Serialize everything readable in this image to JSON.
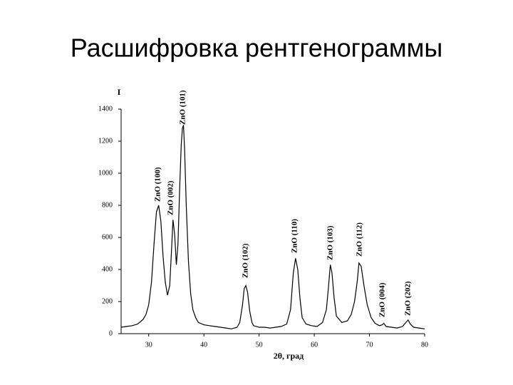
{
  "chart_data": {
    "type": "line",
    "title": "Расшифровка рентгенограммы",
    "y_label": "I",
    "x_label": "2θ, град",
    "xlim": [
      25,
      80
    ],
    "xticks": [
      30,
      40,
      50,
      60,
      70,
      80
    ],
    "ylim": [
      0,
      1400
    ],
    "yticks": [
      0,
      200,
      400,
      600,
      800,
      1000,
      1200,
      1400
    ],
    "color": "#000000",
    "annotations": [
      "ZnO (101)",
      "ZnO (100)",
      "ZnO (002)",
      "ZnO (102)",
      "ZnO (110)",
      "ZnO (103)",
      "ZnO (112)",
      "ZnO (004)",
      "ZnO (202)"
    ],
    "x": [
      25,
      26,
      27,
      28,
      29,
      29.5,
      30,
      30.5,
      31,
      31.4,
      31.8,
      32.2,
      32.6,
      33,
      33.4,
      33.8,
      34.1,
      34.4,
      34.7,
      35,
      35.3,
      35.6,
      35.9,
      36.1,
      36.3,
      36.5,
      36.8,
      37.2,
      37.6,
      38,
      38.5,
      39,
      40,
      41,
      42,
      43,
      44,
      45,
      46,
      46.5,
      47,
      47.3,
      47.6,
      47.9,
      48.3,
      48.7,
      49,
      50,
      51,
      52,
      53,
      54,
      55,
      55.7,
      56.2,
      56.6,
      57,
      57.4,
      57.8,
      58.5,
      59.5,
      60.5,
      61.5,
      62.2,
      62.6,
      62.9,
      63.2,
      63.6,
      64,
      65,
      66,
      66.7,
      67.3,
      67.8,
      68.1,
      68.5,
      69,
      69.6,
      70.3,
      71,
      71.8,
      72.3,
      72.6,
      73,
      74,
      75,
      76,
      76.6,
      77,
      77.4,
      78,
      79,
      80
    ],
    "values": [
      40,
      45,
      50,
      60,
      90,
      120,
      180,
      320,
      580,
      760,
      800,
      700,
      480,
      320,
      240,
      300,
      500,
      710,
      620,
      430,
      560,
      900,
      1180,
      1280,
      1300,
      1150,
      800,
      450,
      250,
      150,
      100,
      70,
      55,
      50,
      45,
      40,
      35,
      30,
      40,
      70,
      180,
      280,
      300,
      260,
      140,
      70,
      50,
      40,
      40,
      35,
      40,
      45,
      60,
      150,
      380,
      470,
      400,
      220,
      100,
      60,
      50,
      45,
      70,
      150,
      300,
      430,
      380,
      220,
      110,
      70,
      80,
      120,
      200,
      330,
      440,
      420,
      300,
      180,
      100,
      65,
      50,
      55,
      65,
      45,
      40,
      35,
      45,
      70,
      85,
      60,
      40,
      35,
      30
    ]
  }
}
